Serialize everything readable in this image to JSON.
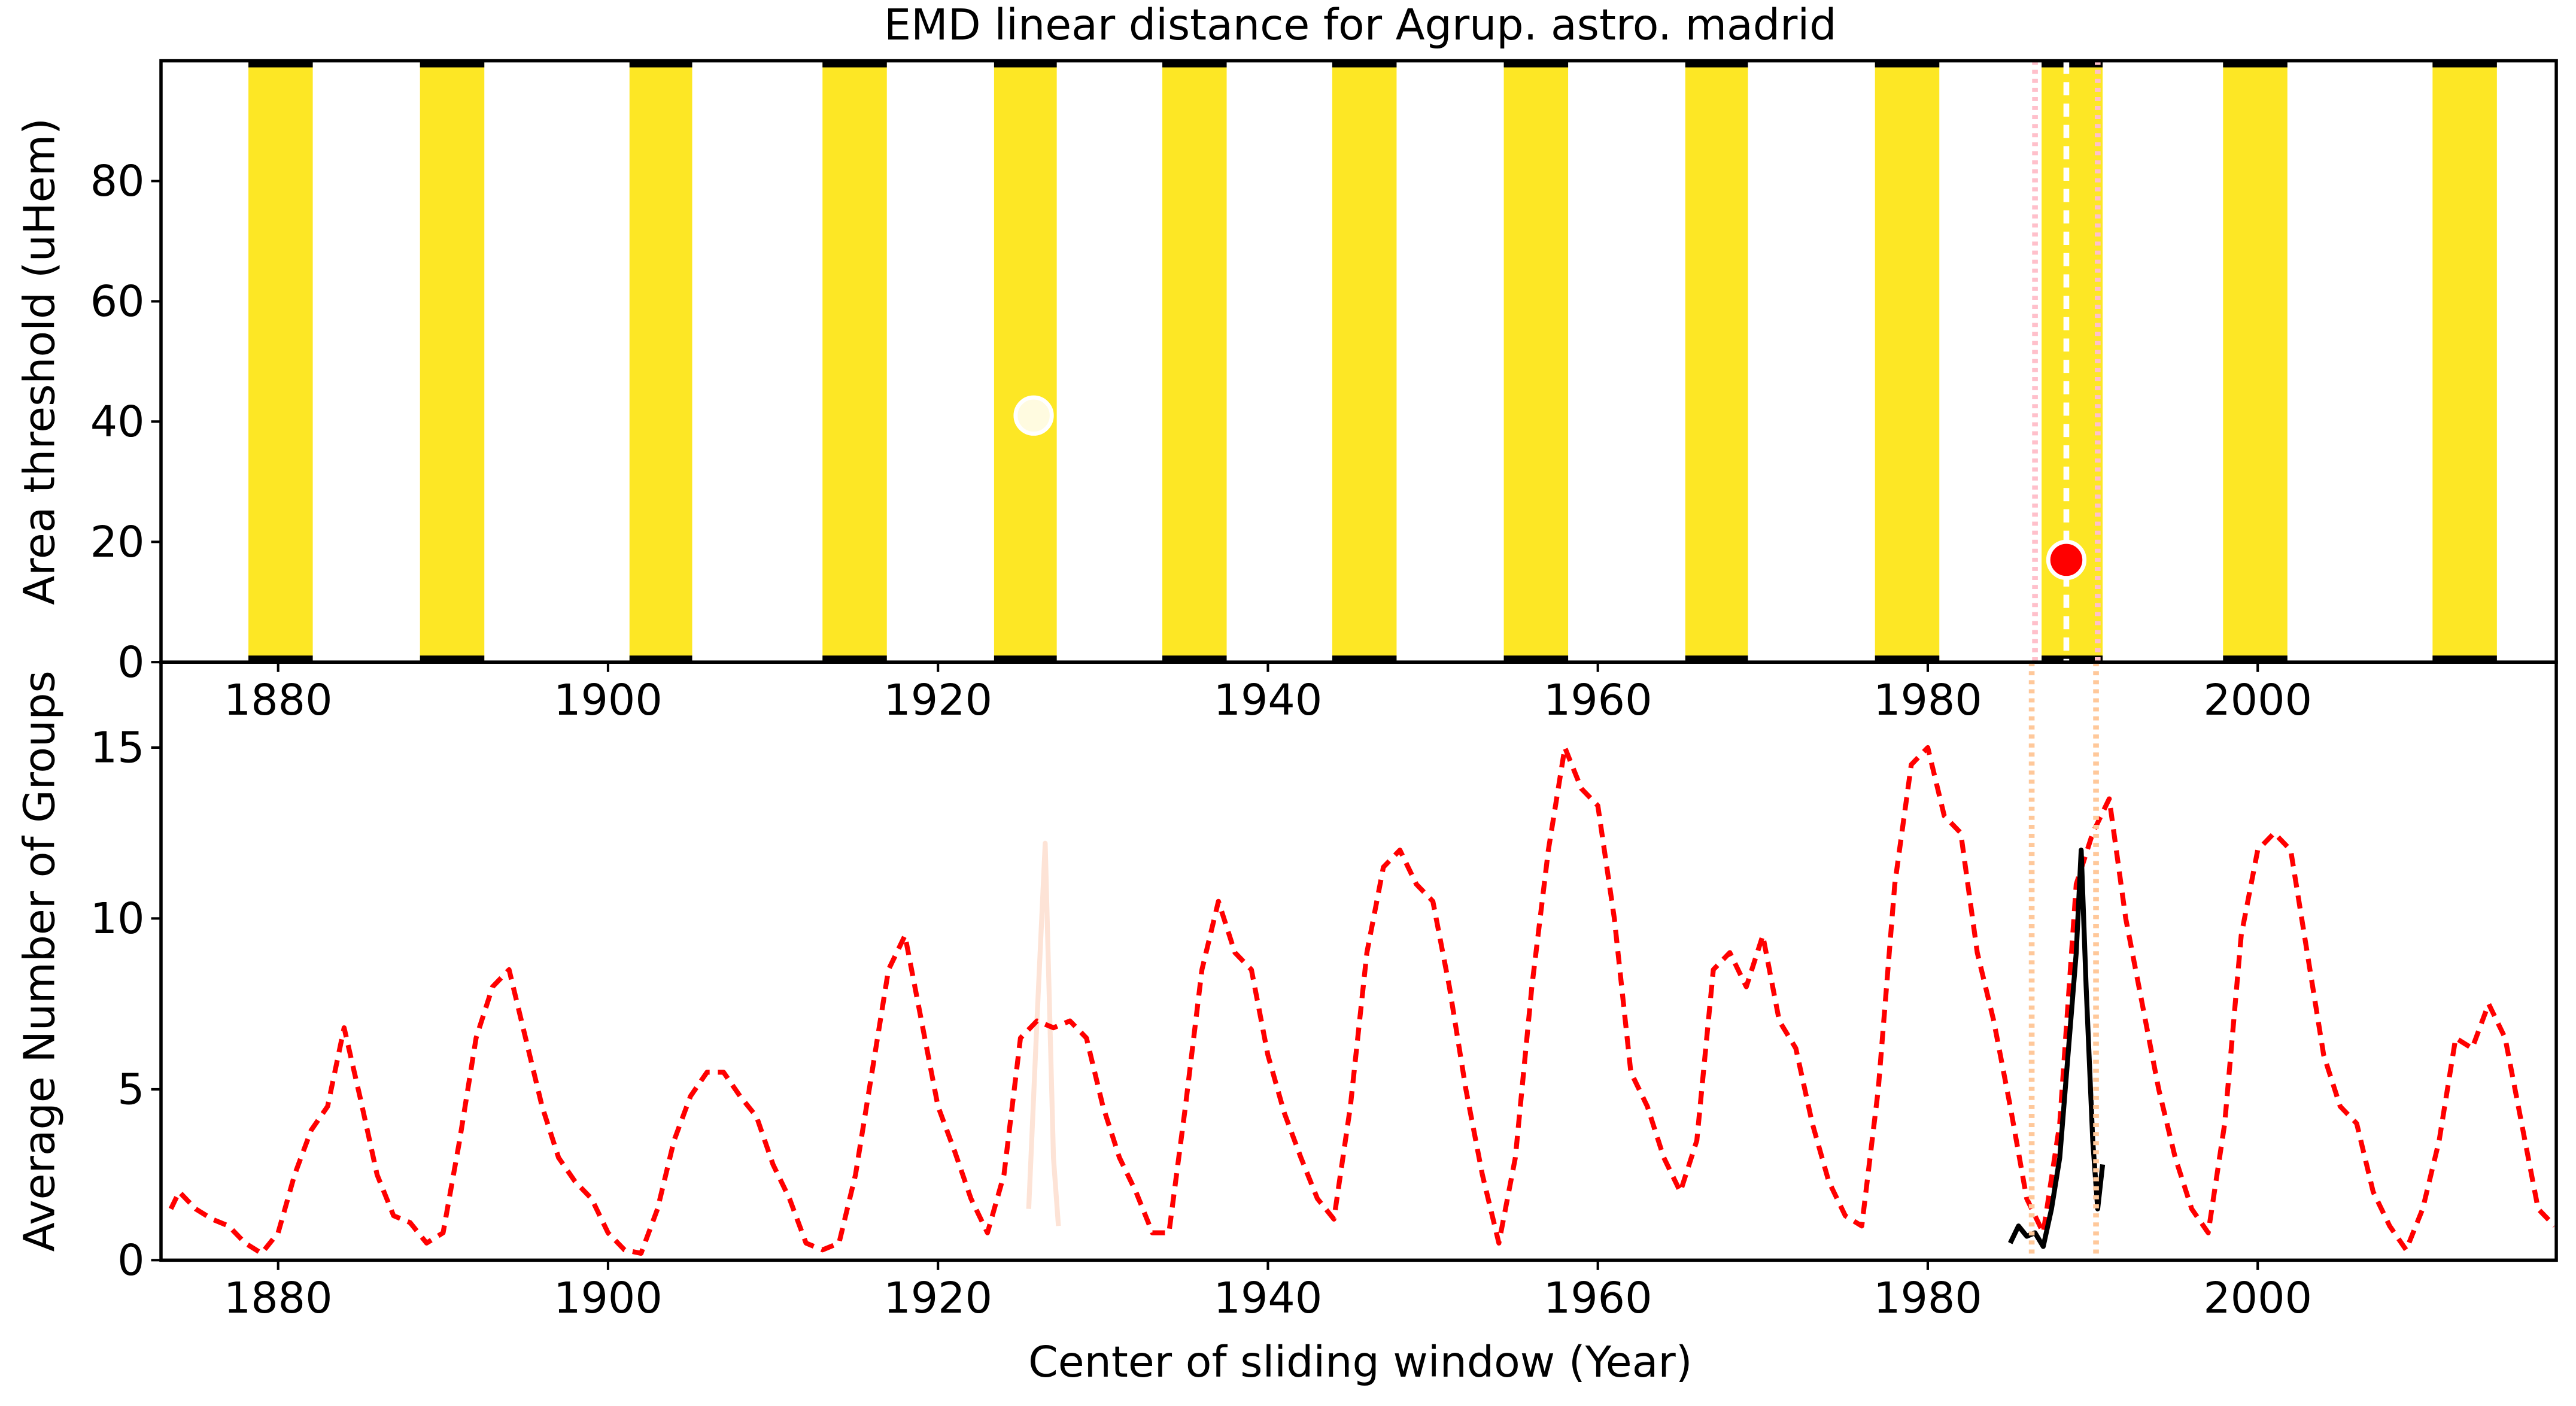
{
  "chart_data": [
    {
      "type": "band",
      "title": "EMD linear distance for Agrup. astro. madrid",
      "y_label": "Area threshold (uHem)",
      "xlim": [
        1872.9,
        2018.1
      ],
      "ylim": [
        0,
        100
      ],
      "xticks": [
        1880,
        1900,
        1920,
        1940,
        1960,
        1980,
        2000
      ],
      "yticks": [
        0,
        20,
        40,
        60,
        80
      ],
      "color": "#fde725",
      "bands": [
        [
          1878.2,
          1882.1
        ],
        [
          1888.6,
          1892.5
        ],
        [
          1901.3,
          1905.1
        ],
        [
          1913.0,
          1916.9
        ],
        [
          1923.4,
          1927.2
        ],
        [
          1933.6,
          1937.5
        ],
        [
          1943.9,
          1947.8
        ],
        [
          1954.3,
          1958.2
        ],
        [
          1965.3,
          1969.1
        ],
        [
          1976.8,
          1980.7
        ],
        [
          1986.9,
          1990.6
        ],
        [
          1997.9,
          2001.8
        ],
        [
          2010.6,
          2014.5
        ]
      ],
      "points": [
        {
          "x": 1925.8,
          "y": 41,
          "color": "#fffbe0"
        },
        {
          "x": 1988.4,
          "y": 17,
          "color": "#ff0000"
        }
      ],
      "vlines": [
        {
          "x": 1986.5,
          "color": "#ffc0cb",
          "style": "dotted"
        },
        {
          "x": 1990.3,
          "color": "#ffc0cb",
          "style": "dotted"
        },
        {
          "x": 1988.4,
          "color": "#ffffff",
          "style": "dashed"
        }
      ]
    },
    {
      "type": "line",
      "y_label": "Average Number of Groups",
      "x_label": "Center of sliding window (Year)",
      "xlim": [
        1872.9,
        2018.1
      ],
      "ylim": [
        0,
        17.5
      ],
      "xticks": [
        1880,
        1900,
        1920,
        1940,
        1960,
        1980,
        2000
      ],
      "yticks": [
        0,
        5,
        10,
        15
      ],
      "series": [
        {
          "color": "#fde3d6",
          "style": "solid",
          "x": [
            1925.5,
            1926,
            1926.5,
            1927,
            1927.3
          ],
          "values": [
            1.5,
            7,
            12.2,
            3,
            1.0
          ]
        },
        {
          "color": "#ff0000",
          "style": "dashed",
          "x": [
            1873.5,
            1874,
            1875,
            1876,
            1877,
            1878,
            1879,
            1880,
            1881,
            1882,
            1883,
            1884,
            1885,
            1886,
            1887,
            1888,
            1889,
            1890,
            1891,
            1892,
            1893,
            1894,
            1895,
            1896,
            1897,
            1898,
            1899,
            1900,
            1901,
            1902,
            1903,
            1904,
            1905,
            1906,
            1907,
            1908,
            1909,
            1910,
            1911,
            1912,
            1913,
            1914,
            1915,
            1916,
            1917,
            1918,
            1919,
            1920,
            1921,
            1922,
            1923,
            1924,
            1925,
            1926,
            1927,
            1928,
            1929,
            1930,
            1931,
            1932,
            1933,
            1934,
            1935,
            1936,
            1937,
            1938,
            1939,
            1940,
            1941,
            1942,
            1943,
            1944,
            1945,
            1946,
            1947,
            1948,
            1949,
            1950,
            1951,
            1952,
            1953,
            1954,
            1955,
            1956,
            1957,
            1958,
            1959,
            1960,
            1961,
            1962,
            1963,
            1964,
            1965,
            1966,
            1967,
            1968,
            1969,
            1970,
            1971,
            1972,
            1973,
            1974,
            1975,
            1976,
            1977,
            1978,
            1979,
            1980,
            1981,
            1982,
            1983,
            1984,
            1985,
            1986,
            1987,
            1988,
            1989,
            1990,
            1991,
            1992,
            1993,
            1994,
            1995,
            1996,
            1997,
            1998,
            1999,
            2000,
            2001,
            2002,
            2003,
            2004,
            2005,
            2006,
            2007,
            2008,
            2009,
            2010,
            2011,
            2012,
            2013,
            2014,
            2015,
            2016,
            2017,
            2018
          ],
          "values": [
            1.5,
            2.0,
            1.5,
            1.2,
            1.0,
            0.5,
            0.2,
            0.8,
            2.5,
            3.8,
            4.5,
            6.8,
            4.7,
            2.5,
            1.3,
            1.1,
            0.5,
            0.8,
            3.5,
            6.5,
            8.0,
            8.5,
            6.5,
            4.5,
            3.0,
            2.3,
            1.8,
            0.8,
            0.3,
            0.2,
            1.5,
            3.5,
            4.8,
            5.5,
            5.5,
            4.8,
            4.2,
            2.8,
            1.8,
            0.5,
            0.3,
            0.5,
            2.5,
            5.5,
            8.5,
            9.5,
            7.0,
            4.5,
            3.2,
            1.8,
            0.8,
            2.5,
            6.5,
            7.0,
            6.8,
            7.0,
            6.5,
            4.5,
            3.0,
            2.0,
            0.8,
            0.8,
            4.5,
            8.5,
            10.5,
            9.0,
            8.5,
            6.0,
            4.3,
            3.0,
            1.8,
            1.2,
            4.5,
            9.0,
            11.5,
            12.0,
            11.0,
            10.5,
            8.0,
            5.0,
            2.5,
            0.5,
            3.0,
            8.0,
            12.0,
            15.0,
            13.8,
            13.3,
            10.0,
            5.5,
            4.5,
            3.0,
            2.0,
            3.5,
            8.5,
            9.0,
            8.0,
            9.5,
            7.0,
            6.2,
            4.0,
            2.3,
            1.3,
            1.0,
            5.0,
            11.0,
            14.5,
            15.0,
            13.0,
            12.5,
            9.0,
            7.0,
            4.5,
            1.8,
            0.8,
            4.0,
            11.0,
            12.5,
            13.5,
            10.0,
            7.5,
            5.0,
            3.0,
            1.5,
            0.8,
            4.0,
            9.5,
            12.0,
            12.5,
            12.0,
            9.0,
            6.0,
            4.5,
            4.0,
            2.0,
            1.0,
            0.3,
            1.5,
            3.5,
            6.5,
            6.2,
            7.5,
            6.5,
            4.0,
            1.5,
            1.0
          ]
        },
        {
          "color": "#000000",
          "style": "solid",
          "x": [
            1985,
            1985.5,
            1986,
            1986.5,
            1987,
            1987.5,
            1988,
            1988.5,
            1989,
            1989.3,
            1989.6,
            1990,
            1990.3,
            1990.6
          ],
          "values": [
            0.5,
            1.0,
            0.7,
            0.8,
            0.4,
            1.5,
            3.0,
            6.0,
            9.0,
            12.0,
            8.0,
            3.5,
            1.5,
            2.8
          ]
        }
      ],
      "vlines": [
        {
          "x": 1986.3,
          "color": "#ffc89a",
          "style": "dotted"
        },
        {
          "x": 1990.2,
          "color": "#ffc89a",
          "style": "dotted"
        }
      ]
    }
  ]
}
